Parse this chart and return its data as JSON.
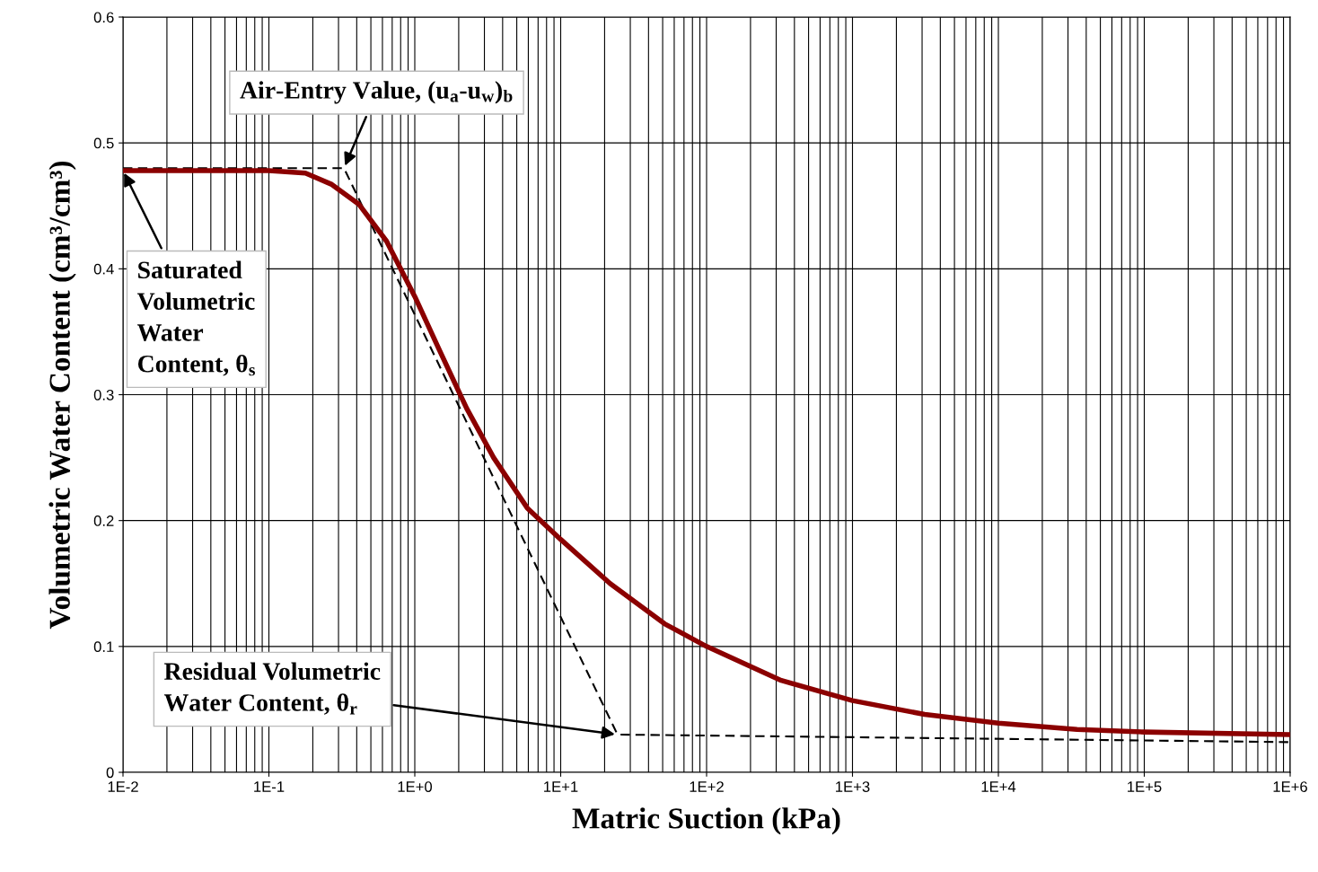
{
  "chart_data": {
    "type": "line",
    "xlabel": "Matric Suction (kPa)",
    "ylabel": "Volumetric Water Content (cm³/cm³)",
    "log": "x",
    "grid": true,
    "xlim": [
      0.01,
      1000000
    ],
    "ylim": [
      0,
      0.6
    ],
    "xticks": [
      {
        "value": 0.01,
        "label": "1E-2"
      },
      {
        "value": 0.1,
        "label": "1E-1"
      },
      {
        "value": 1,
        "label": "1E+0"
      },
      {
        "value": 10,
        "label": "1E+1"
      },
      {
        "value": 100,
        "label": "1E+2"
      },
      {
        "value": 1000,
        "label": "1E+3"
      },
      {
        "value": 10000,
        "label": "1E+4"
      },
      {
        "value": 100000,
        "label": "1E+5"
      },
      {
        "value": 1000000,
        "label": "1E+6"
      }
    ],
    "yticks": [
      0,
      0.1,
      0.2,
      0.3,
      0.4,
      0.5,
      0.6
    ],
    "series": [
      {
        "color": "#8b0000",
        "line_style": "solid",
        "x": [
          0.01,
          0.1,
          0.178,
          0.27,
          0.416,
          0.64,
          1.0,
          1.48,
          2.27,
          3.47,
          5.9,
          10,
          21.8,
          51.5,
          100,
          325,
          1000,
          3126,
          10000,
          34600,
          100000,
          1000000
        ],
        "values": [
          0.478,
          0.478,
          0.476,
          0.467,
          0.451,
          0.422,
          0.378,
          0.335,
          0.289,
          0.25,
          0.21,
          0.185,
          0.15,
          0.118,
          0.1,
          0.073,
          0.057,
          0.046,
          0.039,
          0.034,
          0.032,
          0.03
        ]
      },
      {
        "color": "#000000",
        "line_style": "dashed",
        "x": [
          0.01,
          0.327,
          24.5,
          1000000
        ],
        "values": [
          0.48,
          0.48,
          0.03,
          0.024
        ]
      }
    ],
    "annotations": [
      {
        "text": "Air-Entry Value, (u$_{a}$-u$_{w}$)$_{b}$",
        "x": 0.327,
        "y": 0.48
      },
      {
        "text": "Saturated\nVolumetric\nWater\nContent, θ$_{s}$",
        "x": 0.01,
        "y": 0.478
      },
      {
        "text": "Residual Volumetric\nWater Content, θ$_{r}$",
        "x": 24.5,
        "y": 0.03
      }
    ]
  }
}
